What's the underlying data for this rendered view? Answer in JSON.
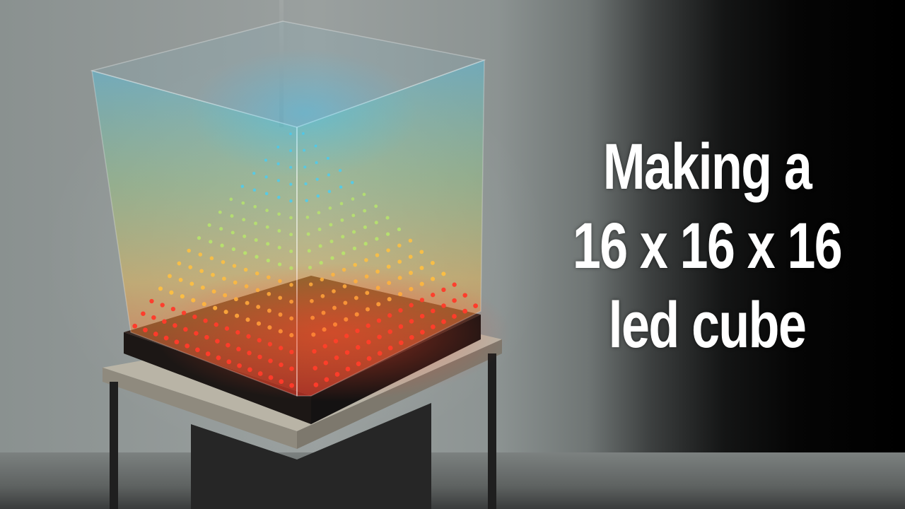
{
  "title": {
    "line1": "Making a",
    "line2": "16 x 16 x 16",
    "line3": "led cube"
  },
  "colors": {
    "top_led": "#3fd0ff",
    "mid_led": "#b8e86a",
    "low_led": "#ffc040",
    "base_led": "#ff3a2a",
    "text": "#ffffff"
  },
  "subject": {
    "grid_size": 16
  }
}
